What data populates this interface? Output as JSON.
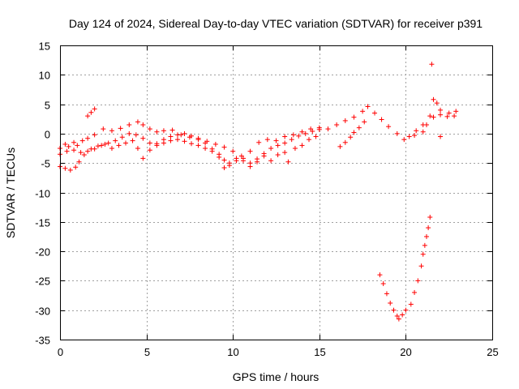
{
  "chart_data": {
    "type": "scatter",
    "title": "Day 124 of 2024, Sidereal Day-to-day VTEC variation (SDTVAR) for receiver p391",
    "xlabel": "GPS time / hours",
    "ylabel": "SDTVAR / TECUs",
    "xlim": [
      0,
      25
    ],
    "ylim": [
      -35,
      15
    ],
    "xticks": [
      0,
      5,
      10,
      15,
      20,
      25
    ],
    "yticks": [
      15,
      10,
      5,
      0,
      -5,
      -10,
      -15,
      -20,
      -25,
      -30,
      -35
    ],
    "grid": true,
    "marker": "+",
    "color": "#ff0000",
    "series": [
      {
        "name": "SDTVAR",
        "points": [
          [
            0.0,
            -2.5
          ],
          [
            0.3,
            -1.8
          ],
          [
            0.5,
            -2.2
          ],
          [
            0.8,
            -1.5
          ],
          [
            1.0,
            -2.0
          ],
          [
            1.3,
            -1.2
          ],
          [
            1.6,
            -0.8
          ],
          [
            2.0,
            -0.2
          ],
          [
            2.5,
            0.8
          ],
          [
            3.0,
            0.5
          ],
          [
            3.5,
            0.9
          ],
          [
            4.0,
            1.5
          ],
          [
            4.5,
            2.0
          ],
          [
            4.8,
            1.5
          ],
          [
            5.2,
            0.8
          ],
          [
            5.6,
            0.3
          ],
          [
            6.0,
            0.5
          ],
          [
            6.5,
            0.6
          ],
          [
            7.0,
            -0.2
          ],
          [
            7.5,
            -0.6
          ],
          [
            8.0,
            -0.8
          ],
          [
            8.5,
            -1.3
          ],
          [
            9.0,
            -1.8
          ],
          [
            9.5,
            -2.3
          ],
          [
            10.0,
            -3.0
          ],
          [
            10.5,
            -3.8
          ],
          [
            11.0,
            -3.0
          ],
          [
            11.5,
            -1.5
          ],
          [
            12.0,
            -1.0
          ],
          [
            12.5,
            -1.2
          ],
          [
            13.0,
            -0.5
          ],
          [
            13.5,
            -0.2
          ],
          [
            14.0,
            0.3
          ],
          [
            14.5,
            0.8
          ],
          [
            15.0,
            1.0
          ],
          [
            15.5,
            0.8
          ],
          [
            16.0,
            1.5
          ],
          [
            16.5,
            2.2
          ],
          [
            17.0,
            2.8
          ],
          [
            17.5,
            3.8
          ],
          [
            17.8,
            4.6
          ],
          [
            18.2,
            3.5
          ],
          [
            18.6,
            2.4
          ],
          [
            19.0,
            1.2
          ],
          [
            19.5,
            0.0
          ],
          [
            19.9,
            -1.0
          ],
          [
            20.2,
            -0.5
          ],
          [
            20.6,
            0.5
          ],
          [
            21.0,
            1.5
          ],
          [
            21.4,
            3.0
          ],
          [
            21.6,
            5.8
          ],
          [
            21.8,
            5.2
          ],
          [
            22.0,
            4.0
          ],
          [
            22.5,
            3.5
          ],
          [
            22.9,
            3.8
          ],
          [
            0.0,
            -3.5
          ],
          [
            0.4,
            -3.0
          ],
          [
            0.8,
            -2.8
          ],
          [
            1.2,
            -3.2
          ],
          [
            1.6,
            -3.0
          ],
          [
            2.0,
            -2.6
          ],
          [
            2.4,
            -2.0
          ],
          [
            2.8,
            -1.6
          ],
          [
            3.2,
            -1.2
          ],
          [
            3.6,
            -0.6
          ],
          [
            4.0,
            0.0
          ],
          [
            4.4,
            -0.2
          ],
          [
            4.8,
            -0.8
          ],
          [
            5.2,
            -1.6
          ],
          [
            5.6,
            -2.0
          ],
          [
            6.0,
            -1.6
          ],
          [
            6.4,
            -1.2
          ],
          [
            6.8,
            -1.0
          ],
          [
            7.2,
            -1.3
          ],
          [
            7.6,
            -1.7
          ],
          [
            8.0,
            -2.0
          ],
          [
            8.4,
            -2.5
          ],
          [
            8.8,
            -3.0
          ],
          [
            9.2,
            -3.5
          ],
          [
            9.5,
            -4.5
          ],
          [
            9.8,
            -5.0
          ],
          [
            10.2,
            -4.2
          ],
          [
            10.6,
            -4.6
          ],
          [
            11.0,
            -5.0
          ],
          [
            11.4,
            -4.3
          ],
          [
            11.8,
            -3.4
          ],
          [
            12.2,
            -2.5
          ],
          [
            12.6,
            -2.0
          ],
          [
            13.0,
            -1.6
          ],
          [
            13.4,
            -1.0
          ],
          [
            13.8,
            -0.4
          ],
          [
            14.2,
            0.0
          ],
          [
            14.6,
            0.4
          ],
          [
            15.0,
            0.7
          ],
          [
            0.0,
            -5.6
          ],
          [
            0.3,
            -5.9
          ],
          [
            0.6,
            -6.2
          ],
          [
            0.9,
            -5.7
          ],
          [
            1.1,
            -4.8
          ],
          [
            1.4,
            -3.6
          ],
          [
            1.8,
            -2.6
          ],
          [
            2.2,
            -2.1
          ],
          [
            2.6,
            -1.8
          ],
          [
            3.0,
            -2.5
          ],
          [
            3.4,
            -2.0
          ],
          [
            3.8,
            -1.6
          ],
          [
            4.2,
            -1.2
          ],
          [
            4.5,
            -2.5
          ],
          [
            4.8,
            -4.2
          ],
          [
            5.2,
            -2.8
          ],
          [
            5.6,
            -1.7
          ],
          [
            6.0,
            -1.0
          ],
          [
            6.4,
            -0.5
          ],
          [
            6.8,
            -0.2
          ],
          [
            7.2,
            0.0
          ],
          [
            7.6,
            -0.4
          ],
          [
            8.0,
            -1.0
          ],
          [
            8.4,
            -1.6
          ],
          [
            8.8,
            -2.6
          ],
          [
            9.2,
            -4.0
          ],
          [
            9.5,
            -5.8
          ],
          [
            9.8,
            -5.4
          ],
          [
            10.2,
            -4.6
          ],
          [
            10.6,
            -4.2
          ],
          [
            11.0,
            -5.6
          ],
          [
            11.4,
            -4.8
          ],
          [
            11.8,
            -3.8
          ],
          [
            12.2,
            -4.6
          ],
          [
            12.6,
            -3.6
          ],
          [
            13.0,
            -3.2
          ],
          [
            13.2,
            -4.8
          ],
          [
            13.6,
            -2.5
          ],
          [
            14.0,
            -2.0
          ],
          [
            14.4,
            -1.0
          ],
          [
            14.8,
            -0.5
          ],
          [
            1.6,
            3.0
          ],
          [
            1.8,
            3.6
          ],
          [
            2.0,
            4.2
          ],
          [
            16.2,
            -2.2
          ],
          [
            16.5,
            -1.5
          ],
          [
            16.8,
            -0.6
          ],
          [
            17.0,
            0.2
          ],
          [
            17.3,
            1.0
          ],
          [
            17.6,
            2.0
          ],
          [
            18.5,
            -24.0
          ],
          [
            18.7,
            -25.5
          ],
          [
            18.9,
            -27.2
          ],
          [
            19.1,
            -28.8
          ],
          [
            19.3,
            -30.0
          ],
          [
            19.5,
            -31.0
          ],
          [
            19.6,
            -31.5
          ],
          [
            19.8,
            -30.8
          ],
          [
            20.0,
            -30.0
          ],
          [
            20.3,
            -29.0
          ],
          [
            20.5,
            -27.0
          ],
          [
            20.7,
            -25.0
          ],
          [
            20.9,
            -22.5
          ],
          [
            21.0,
            -20.5
          ],
          [
            21.1,
            -19.0
          ],
          [
            21.2,
            -17.5
          ],
          [
            21.3,
            -16.0
          ],
          [
            21.4,
            -14.2
          ],
          [
            21.5,
            11.8
          ],
          [
            21.2,
            1.5
          ],
          [
            21.6,
            2.8
          ],
          [
            22.0,
            3.2
          ],
          [
            22.4,
            2.9
          ],
          [
            22.8,
            3.0
          ],
          [
            22.0,
            -0.5
          ],
          [
            21.0,
            0.3
          ],
          [
            20.5,
            -0.3
          ]
        ]
      }
    ]
  }
}
